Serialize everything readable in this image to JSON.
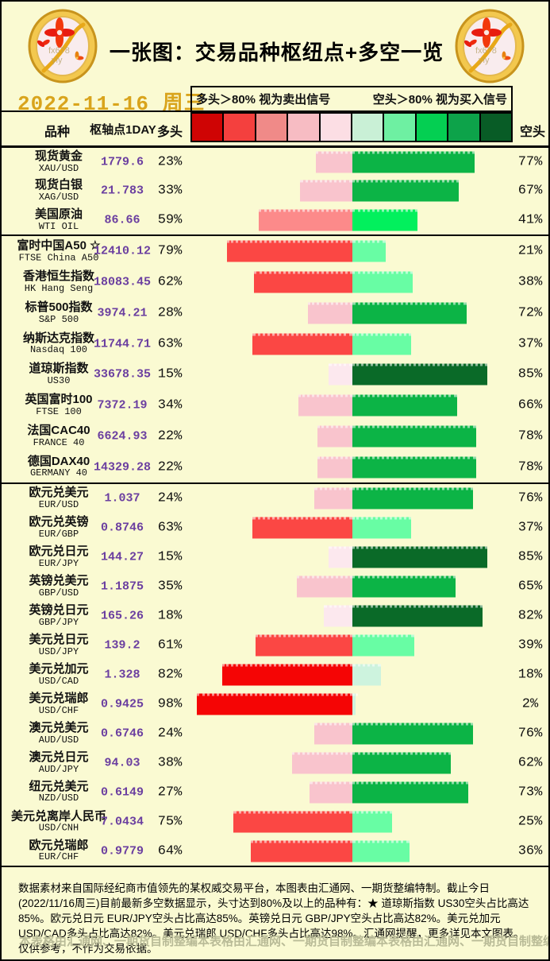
{
  "header": {
    "title": "一张图：交易品种枢纽点+多空一览",
    "date": "2022-11-16 周三",
    "coin_wm1": "fx678",
    "coin_wm2": "yly"
  },
  "legend": {
    "long_note": "多头＞80% 视为卖出信号",
    "short_note": "空头＞80% 视为买入信号",
    "swatches": [
      "#cf0404",
      "#f4403e",
      "#f08a88",
      "#f7bcc3",
      "#fcdee4",
      "#c9f0d6",
      "#6ef0a2",
      "#04cf52",
      "#0da34a",
      "#085c26"
    ]
  },
  "table": {
    "col_product": "品种",
    "col_pivot": "枢轴点1DAY",
    "col_long": "多头",
    "col_short": "空头",
    "sections": [
      {
        "rows": [
          {
            "cn": "现货黄金",
            "code": "XAU/USD",
            "pivot": "1779.6",
            "long": 23,
            "short": 77
          },
          {
            "cn": "现货白银",
            "code": "XAG/USD",
            "pivot": "21.783",
            "long": 33,
            "short": 67
          },
          {
            "cn": "美国原油",
            "code": "WTI OIL",
            "pivot": "86.66",
            "long": 59,
            "short": 41
          }
        ]
      },
      {
        "rows": [
          {
            "cn": "富时中国A50 ☆",
            "code": "FTSE China A50",
            "pivot": "12410.12",
            "long": 79,
            "short": 21
          },
          {
            "cn": "香港恒生指数",
            "code": "HK Hang Seng",
            "pivot": "18083.45",
            "long": 62,
            "short": 38
          },
          {
            "cn": "标普500指数",
            "code": "S&P 500",
            "pivot": "3974.21",
            "long": 28,
            "short": 72
          },
          {
            "cn": "纳斯达克指数",
            "code": "Nasdaq 100",
            "pivot": "11744.71",
            "long": 63,
            "short": 37
          },
          {
            "cn": "道琼斯指数",
            "code": "US30",
            "pivot": "33678.35",
            "long": 15,
            "short": 85
          },
          {
            "cn": "英国富时100",
            "code": "FTSE 100",
            "pivot": "7372.19",
            "long": 34,
            "short": 66
          },
          {
            "cn": "法国CAC40",
            "code": "FRANCE 40",
            "pivot": "6624.93",
            "long": 22,
            "short": 78
          },
          {
            "cn": "德国DAX40",
            "code": "GERMANY 40",
            "pivot": "14329.28",
            "long": 22,
            "short": 78
          }
        ]
      },
      {
        "rows": [
          {
            "cn": "欧元兑美元",
            "code": "EUR/USD",
            "pivot": "1.037",
            "long": 24,
            "short": 76
          },
          {
            "cn": "欧元兑英镑",
            "code": "EUR/GBP",
            "pivot": "0.8746",
            "long": 63,
            "short": 37
          },
          {
            "cn": "欧元兑日元",
            "code": "EUR/JPY",
            "pivot": "144.27",
            "long": 15,
            "short": 85
          },
          {
            "cn": "英镑兑美元",
            "code": "GBP/USD",
            "pivot": "1.1875",
            "long": 35,
            "short": 65
          },
          {
            "cn": "英镑兑日元",
            "code": "GBP/JPY",
            "pivot": "165.26",
            "long": 18,
            "short": 82
          },
          {
            "cn": "美元兑日元",
            "code": "USD/JPY",
            "pivot": "139.2",
            "long": 61,
            "short": 39
          },
          {
            "cn": "美元兑加元",
            "code": "USD/CAD",
            "pivot": "1.328",
            "long": 82,
            "short": 18
          },
          {
            "cn": "美元兑瑞郎",
            "code": "USD/CHF",
            "pivot": "0.9425",
            "long": 98,
            "short": 2
          },
          {
            "cn": "澳元兑美元",
            "code": "AUD/USD",
            "pivot": "0.6746",
            "long": 24,
            "short": 76
          },
          {
            "cn": "澳元兑日元",
            "code": "AUD/JPY",
            "pivot": "94.03",
            "long": 38,
            "short": 62
          },
          {
            "cn": "纽元兑美元",
            "code": "NZD/USD",
            "pivot": "0.6149",
            "long": 27,
            "short": 73
          },
          {
            "cn": "美元兑离岸人民币",
            "code": "USD/CNH",
            "pivot": "7.0434",
            "long": 75,
            "short": 25
          },
          {
            "cn": "欧元兑瑞郎",
            "code": "EUR/CHF",
            "pivot": "0.9779",
            "long": 64,
            "short": 36
          }
        ]
      }
    ]
  },
  "bar_colors": {
    "long": {
      "b0": "#fce8ee",
      "b20": "#f9c4cd",
      "b40": "#fc8a8a",
      "b60": "#fb4744",
      "b80": "#f50505"
    },
    "short": {
      "b0": "#cdf3de",
      "b20": "#68fda4",
      "b40": "#02f05d",
      "b60": "#0cb446",
      "b80": "#0a6a28"
    }
  },
  "colors": {
    "background": "#fafad2",
    "date_gold": "#d9a41c",
    "pivot_purple": "#6b3fa0",
    "credit_gray": "#b9bb97"
  },
  "footer": {
    "disclaimer": "数据素材来自国际经纪商市值领先的某权威交易平台，本图表由汇通网、一期货整编特制。截止今日(2022/11/16周三)目前最新多空数据显示，头寸达到80%及以上的品种有：★ 道琼斯指数 US30空头占比高达85%。欧元兑日元 EUR/JPY空头占比高达85%。英镑兑日元 GBP/JPY空头占比高达82%。美元兑加元 USD/CAD多头占比高达82%。美元兑瑞郎 USD/CHF多头占比高达98%。汇通网提醒，更多详见本文图表。仅供参考，不作为交易依据。",
    "credit": "本表格由汇通网、一期货自制整编"
  },
  "chart_data": {
    "type": "bar",
    "title": "一张图：交易品种枢纽点+多空一览",
    "subtitle": "2022-11-16 周三",
    "orientation": "horizontal-diverging",
    "categories": [
      "XAU/USD",
      "XAG/USD",
      "WTI OIL",
      "FTSE China A50",
      "HK Hang Seng",
      "S&P 500",
      "Nasdaq 100",
      "US30",
      "FTSE 100",
      "FRANCE 40",
      "GERMANY 40",
      "EUR/USD",
      "EUR/GBP",
      "EUR/JPY",
      "GBP/USD",
      "GBP/JPY",
      "USD/JPY",
      "USD/CAD",
      "USD/CHF",
      "AUD/USD",
      "AUD/JPY",
      "NZD/USD",
      "USD/CNH",
      "EUR/CHF"
    ],
    "series": [
      {
        "name": "多头%",
        "values": [
          23,
          33,
          59,
          79,
          62,
          28,
          63,
          15,
          34,
          22,
          22,
          24,
          63,
          15,
          35,
          18,
          61,
          82,
          98,
          24,
          38,
          27,
          75,
          64
        ]
      },
      {
        "name": "空头%",
        "values": [
          77,
          67,
          41,
          21,
          38,
          72,
          37,
          85,
          66,
          78,
          78,
          76,
          37,
          85,
          65,
          82,
          39,
          18,
          2,
          76,
          62,
          73,
          25,
          36
        ]
      },
      {
        "name": "枢轴点1DAY",
        "values": [
          1779.6,
          21.783,
          86.66,
          12410.12,
          18083.45,
          3974.21,
          11744.71,
          33678.35,
          7372.19,
          6624.93,
          14329.28,
          1.037,
          0.8746,
          144.27,
          1.1875,
          165.26,
          139.2,
          1.328,
          0.9425,
          0.6746,
          94.03,
          0.6149,
          7.0434,
          0.9779
        ]
      }
    ],
    "xlabel": "多头% ←→ 空头%",
    "ylabel": "品种",
    "xlim": [
      -100,
      100
    ],
    "grid": false,
    "legend_position": "top",
    "annotations": [
      "多头＞80% 视为卖出信号",
      "空头＞80% 视为买入信号"
    ]
  }
}
